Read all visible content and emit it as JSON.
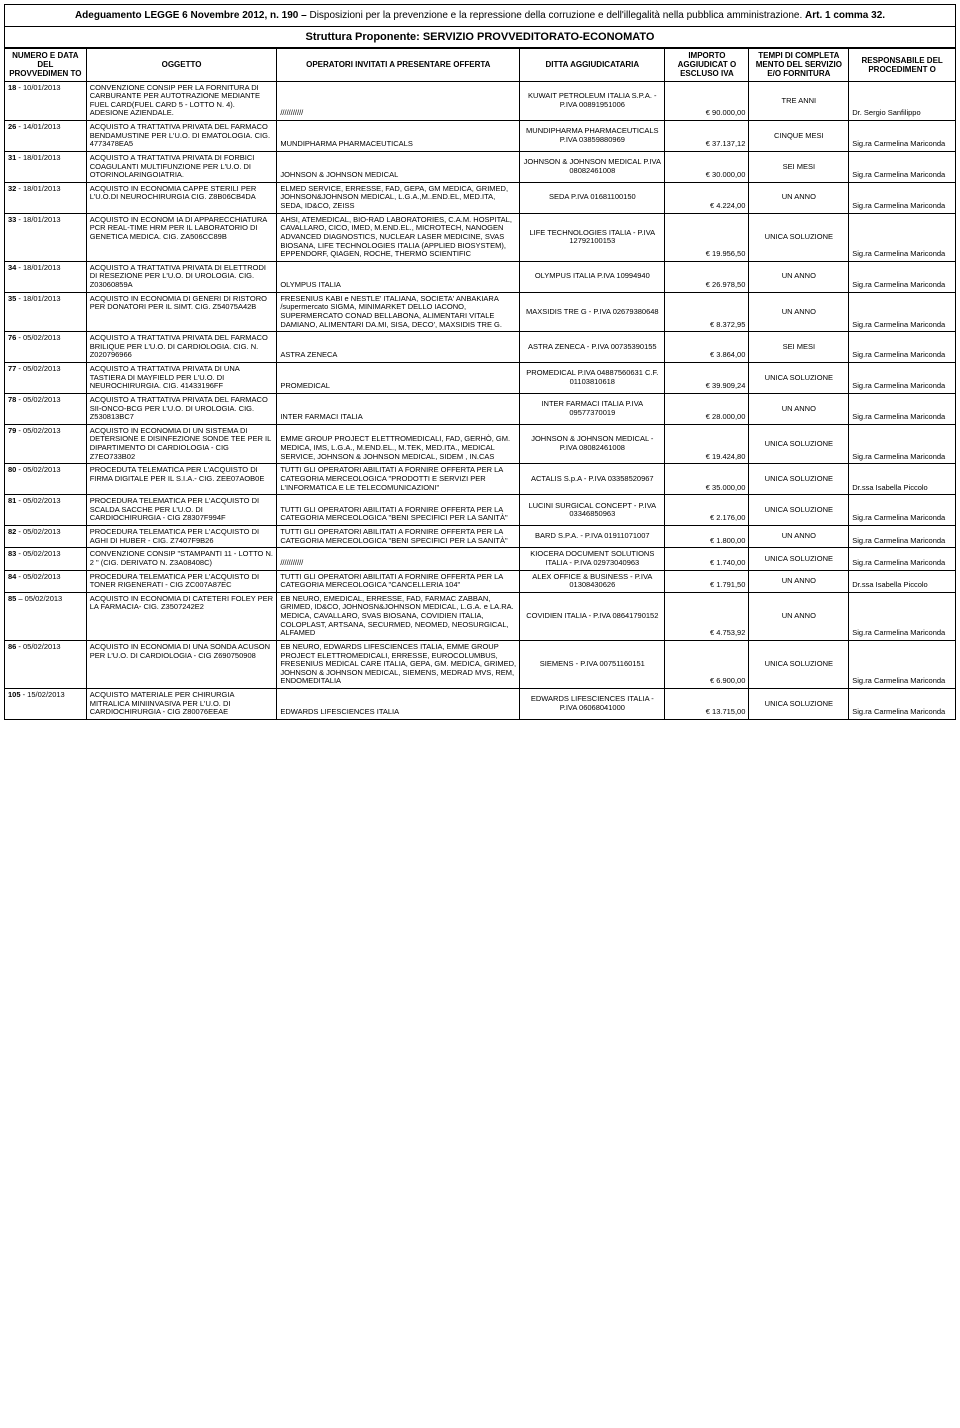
{
  "header": {
    "law_prefix": "Adeguamento LEGGE 6 Novembre 2012, n. 190 – ",
    "law_text": "Disposizioni per la prevenzione e la repressione della corruzione e dell'illegalità nella pubblica amministrazione. ",
    "law_suffix": "Art. 1 comma 32.",
    "subtitle": "Struttura Proponente: SERVIZIO PROVVEDITORATO-ECONOMATO"
  },
  "columns": [
    "NUMERO E DATA DEL PROVVEDIMEN TO",
    "OGGETTO",
    "OPERATORI INVITATI A PRESENTARE OFFERTA",
    "DITTA AGGIUDICATARIA",
    "IMPORTO AGGIUDICAT O ESCLUSO IVA",
    "TEMPI DI COMPLETA MENTO DEL SERVIZIO E/O FORNITURA",
    "RESPONSABILE DEL PROCEDIMENT O"
  ],
  "rows": [
    {
      "num_bold": "18",
      "num_rest": " - 10/01/2013",
      "oggetto": "CONVENZIONE CONSIP PER LA FORNITURA DI CARBURANTE PER AUTOTRAZIONE MEDIANTE FUEL CARD(FUEL CARD 5 - LOTTO N. 4). ADESIONE AZIENDALE.",
      "operatori": "///////////",
      "ditta": "KUWAIT PETROLEUM ITALIA S.P.A. - P.IVA 00891951006",
      "importo": "€ 90.000,00",
      "tempi": "TRE ANNI",
      "resp": "Dr. Sergio Sanfilippo"
    },
    {
      "num_bold": "26",
      "num_rest": " - 14/01/2013",
      "oggetto": "ACQUISTO A TRATTATIVA PRIVATA DEL FARMACO BENDAMUSTINE PER L'U.O. DI EMATOLOGIA. CIG. 4773478EA5",
      "operatori": "MUNDIPHARMA PHARMACEUTICALS",
      "ditta": "MUNDIPHARMA PHARMACEUTICALS P.IVA 03859880969",
      "importo": "€ 37.137,12",
      "tempi": "CINQUE MESI",
      "resp": "Sig.ra Carmelina Mariconda"
    },
    {
      "num_bold": "31",
      "num_rest": " - 18/01/2013",
      "oggetto": "ACQUISTO A TRATTATIVA PRIVATA DI FORBICI COAGULANTI MULTIFUNZIONE PER L'U.O. DI OTORINOLARINGOIATRIA.",
      "operatori": "JOHNSON & JOHNSON MEDICAL",
      "ditta": "JOHNSON & JOHNSON MEDICAL P.IVA 08082461008",
      "importo": "€ 30.000,00",
      "tempi": "SEI MESI",
      "resp": "Sig.ra Carmelina Mariconda"
    },
    {
      "num_bold": "32",
      "num_rest": " - 18/01/2013",
      "oggetto": "ACQUISTO IN ECONOMIA CAPPE STERILI PER L'U.O.DI NEUROCHIRURGIA CIG. Z8B06CB4DA",
      "operatori": "ELMED SERVICE, ERRESSE, FAD, GEPA, GM MEDICA, GRIMED, JOHNSON&JOHNSON MEDICAL, L.G.A.,M..END.EL, MED.ITA, SEDA, ID&CO, ZEISS",
      "ditta": "SEDA P.IVA 01681100150",
      "importo": "€ 4.224,00",
      "tempi": "UN ANNO",
      "resp": "Sig.ra Carmelina Mariconda"
    },
    {
      "num_bold": "33",
      "num_rest": " - 18/01/2013",
      "oggetto": "ACQUISTO IN ECONOM IA DI APPARECCHIATURA PCR REAL-TIME HRM PER IL LABORATORIO DI GENETICA MEDICA. CIG. ZA506CC89B",
      "operatori": "AHSI, ATEMEDICAL, BIO-RAD LABORATORIES, C.A.M. HOSPITAL, CAVALLARO, CICO, IMED, M.END.EL., MICROTECH, NANOGEN ADVANCED DIAGNOSTICS, NUCLEAR LASER MEDICINE, SVAS BIOSANA, LIFE TECHNOLOGIES ITALIA (APPLIED BIOSYSTEM), EPPENDORF, QIAGEN, ROCHE, THERMO SCIENTIFIC",
      "ditta": "LIFE TECHNOLOGIES ITALIA - P.IVA 12792100153",
      "importo": "€ 19.956,50",
      "tempi": "UNICA SOLUZIONE",
      "resp": "Sig.ra Carmelina Mariconda"
    },
    {
      "num_bold": "34",
      "num_rest": " - 18/01/2013",
      "oggetto": "ACQUISTO A TRATTATIVA PRIVATA DI ELETTRODI DI RESEZIONE PER L'U.O. DI UROLOGIA. CIG. Z03060859A",
      "operatori": "OLYMPUS ITALIA",
      "ditta": "OLYMPUS ITALIA P.IVA 10994940",
      "importo": "€ 26.978,50",
      "tempi": "UN ANNO",
      "resp": "Sig.ra Carmelina Mariconda"
    },
    {
      "num_bold": "35",
      "num_rest": " - 18/01/2013",
      "oggetto": "ACQUISTO IN ECONOMIA DI GENERI DI RISTORO PER DONATORI PER IL SIMT. CIG. Z54075A42B",
      "operatori": "FRESENIUS KABI e NESTLE' ITALIANA, SOCIETA' ANBAKIARA /supermercato SIGMA, MINIMARKET DELLO IACONO, SUPERMERCATO CONAD BELLABONA, ALIMENTARI VITALE DAMIANO, ALIMENTARI DA.MI, SISA, DECO', MAXSIDIS TRE G.",
      "ditta": "MAXSIDIS TRE G - P.IVA 02679380648",
      "importo": "€ 8.372,95",
      "tempi": "UN ANNO",
      "resp": "Sig.ra Carmelina Mariconda"
    },
    {
      "num_bold": "76",
      "num_rest": " - 05/02/2013",
      "oggetto": "ACQUISTO A TRATTATIVA PRIVATA DEL FARMACO BRILIQUE PER L'U.O. DI CARDIOLOGIA. CIG. N. Z020796966",
      "operatori": "ASTRA ZENECA",
      "ditta": "ASTRA ZENECA - P.IVA 00735390155",
      "importo": "€ 3.864,00",
      "tempi": "SEI MESI",
      "resp": "Sig.ra Carmelina Mariconda"
    },
    {
      "num_bold": "77",
      "num_rest": " - 05/02/2013",
      "oggetto": "ACQUISTO A TRATTATIVA PRIVATA DI UNA TASTIERA DI MAYFIELD PER L'U.O. DI NEUROCHIRURGIA. CIG. 41433196FF",
      "operatori": "PROMEDICAL",
      "ditta": "PROMEDICAL P.IVA 04887560631 C.F. 01103810618",
      "importo": "€ 39.909,24",
      "tempi": "UNICA SOLUZIONE",
      "resp": "Sig.ra Carmelina Mariconda"
    },
    {
      "num_bold": "78",
      "num_rest": " - 05/02/2013",
      "oggetto": "ACQUISTO A TRATTATIVA PRIVATA DEL FARMACO SII-ONCO-BCG PER L'U.O. DI UROLOGIA. CIG. Z530813BC7",
      "operatori": "INTER FARMACI ITALIA",
      "ditta": "INTER FARMACI ITALIA P.IVA 09577370019",
      "importo": "€ 28.000,00",
      "tempi": "UN ANNO",
      "resp": "Sig.ra Carmelina Mariconda"
    },
    {
      "num_bold": "79",
      "num_rest": " - 05/02/2013",
      "oggetto": "ACQUISTO IN ECONOMIA DI UN SISTEMA DI DETERSIONE E DISINFEZIONE SONDE TEE PER IL DIPARTIMENTO DI CARDIOLOGIA - CIG Z7EO733B02",
      "operatori": "EMME GROUP PROJECT ELETTROMEDICALI, FAD, GERHÒ, GM. MEDICA, IMS, L.G.A., M.END.EL., M.TEK, MED.ITA., MEDICAL SERVICE, JOHNSON & JOHNSON MEDICAL, SIDEM , IN.CAS",
      "ditta": "JOHNSON & JOHNSON MEDICAL - P.IVA 08082461008",
      "importo": "€ 19.424,80",
      "tempi": "UNICA SOLUZIONE",
      "resp": "Sig.ra Carmelina Mariconda"
    },
    {
      "num_bold": "80",
      "num_rest": " - 05/02/2013",
      "oggetto": "PROCEDUTA TELEMATICA PER L'ACQUISTO DI FIRMA DIGITALE PER IL S.I.A.- CIG. ZEE07AOB0E",
      "operatori": "TUTTI GLI OPERATORI ABILITATI A FORNIRE OFFERTA PER LA CATEGORIA MERCEOLOGICA \"PRODOTTI E SERVIZI PER L'INFORMATICA E LE TELECOMUNICAZIONI\"",
      "ditta": "ACTALIS S.p.A - P.IVA 03358520967",
      "importo": "€ 35.000,00",
      "tempi": "UNICA SOLUZIONE",
      "resp": "Dr.ssa Isabella Piccolo"
    },
    {
      "num_bold": "81",
      "num_rest": " - 05/02/2013",
      "oggetto": "PROCEDURA TELEMATICA PER L'ACQUISTO DI SCALDA SACCHE PER L'U.O. DI CARDIOCHIRURGIA - CIG Z8307F994F",
      "operatori": "TUTTI GLI OPERATORI ABILITATI A FORNIRE OFFERTA PER LA CATEGORIA MERCEOLOGICA \"BENI SPECIFICI PER LA SANITÀ\"",
      "ditta": "LUCINI SURGICAL CONCEPT - P.IVA 03346850963",
      "importo": "€ 2.176,00",
      "tempi": "UNICA SOLUZIONE",
      "resp": "Sig.ra Carmelina Mariconda"
    },
    {
      "num_bold": "82",
      "num_rest": " - 05/02/2013",
      "oggetto": "PROCEDURA TELEMATICA PER L'ACQUISTO DI AGHI DI HUBER - CIG. Z7407F9B26",
      "operatori": "TUTTI GLI OPERATORI ABILITATI A FORNIRE OFFERTA PER LA CATEGORIA MERCEOLOGICA \"BENI SPECIFICI PER LA SANITÀ\"",
      "ditta": "BARD S.P.A. - P.IVA 01911071007",
      "importo": "€ 1.800,00",
      "tempi": "UN ANNO",
      "resp": "Sig.ra Carmelina Mariconda"
    },
    {
      "num_bold": "83",
      "num_rest": " - 05/02/2013",
      "oggetto": "CONVENZIONE CONSIP \"STAMPANTI 11 - LOTTO N. 2 \" (CIG. DERIVATO N. Z3A08408C)",
      "operatori": "///////////",
      "ditta": "KIOCERA DOCUMENT SOLUTIONS ITALIA - P.IVA 02973040963",
      "importo": "€ 1.740,00",
      "tempi": "UNICA SOLUZIONE",
      "resp": "Sig.ra Carmelina Mariconda"
    },
    {
      "num_bold": "84",
      "num_rest": " - 05/02/2013",
      "oggetto": "PROCEDURA TELEMATICA PER L'ACQUISTO DI TONER RIGENERATI - CIG ZC007A87EC",
      "operatori": "TUTTI GLI OPERATORI ABILITATI A FORNIRE OFFERTA PER LA CATEGORIA MERCEOLOGICA \"CANCELLERIA 104\"",
      "ditta": "ALEX OFFICE & BUSINESS - P.IVA 01308430626",
      "importo": "€ 1.791,50",
      "tempi": "UN ANNO",
      "resp": "Dr.ssa Isabella Piccolo"
    },
    {
      "num_bold": "85",
      "num_rest": " – 05/02/2013",
      "oggetto": "ACQUISTO IN ECONOMIA DI CATETERI FOLEY PER LA FARMACIA- CIG. Z3507242E2",
      "operatori": "EB NEURO, EMEDICAL, ERRESSE, FAD, FARMAC ZABBAN, GRIMED, ID&CO, JOHNOSN&JOHNSON MEDICAL, L.G.A. e LA.RA. MEDICA, CAVALLARO, SVAS BIOSANA, COVIDIEN ITALIA, COLOPLAST, ARTSANA, SECURMED, NEOMED, NEOSURGICAL, ALFAMED",
      "ditta": "COVIDIEN ITALIA - P.IVA 08641790152",
      "importo": "€ 4.753,92",
      "tempi": "UN ANNO",
      "resp": "Sig.ra Carmelina Mariconda"
    },
    {
      "num_bold": "86",
      "num_rest": " - 05/02/2013",
      "oggetto": "ACQUISTO IN ECONOMIA DI UNA SONDA ACUSON PER L'U.O. DI CARDIOLOGIA - CIG Z690750908",
      "operatori": "EB NEURO, EDWARDS LIFESCIENCES ITALIA, EMME GROUP PROJECT ELETTROMEDICALI, ERRESSE, EUROCOLUMBUS, FRESENIUS MEDICAL CARE ITALIA, GEPA, GM. MEDICA, GRIMED, JOHNSON & JOHNSON MEDICAL, SIEMENS, MEDRAD MVS, REM, ENDOMEDITALIA",
      "ditta": "SIEMENS - P.IVA 00751160151",
      "importo": "€ 6.900,00",
      "tempi": "UNICA SOLUZIONE",
      "resp": "Sig.ra Carmelina Mariconda"
    },
    {
      "num_bold": "105",
      "num_rest": " - 15/02/2013",
      "oggetto": "ACQUISTO MATERIALE PER CHIRURGIA MITRALICA MINIINVASIVA PER L'U.O. DI CARDIOCHIRURGIA - CIG Z80076EEAE",
      "operatori": "EDWARDS LIFESCIENCES ITALIA",
      "ditta": "EDWARDS LIFESCIENCES ITALIA - P.IVA 06068041000",
      "importo": "€ 13.715,00",
      "tempi": "UNICA SOLUZIONE",
      "resp": "Sig.ra Carmelina Mariconda"
    }
  ]
}
